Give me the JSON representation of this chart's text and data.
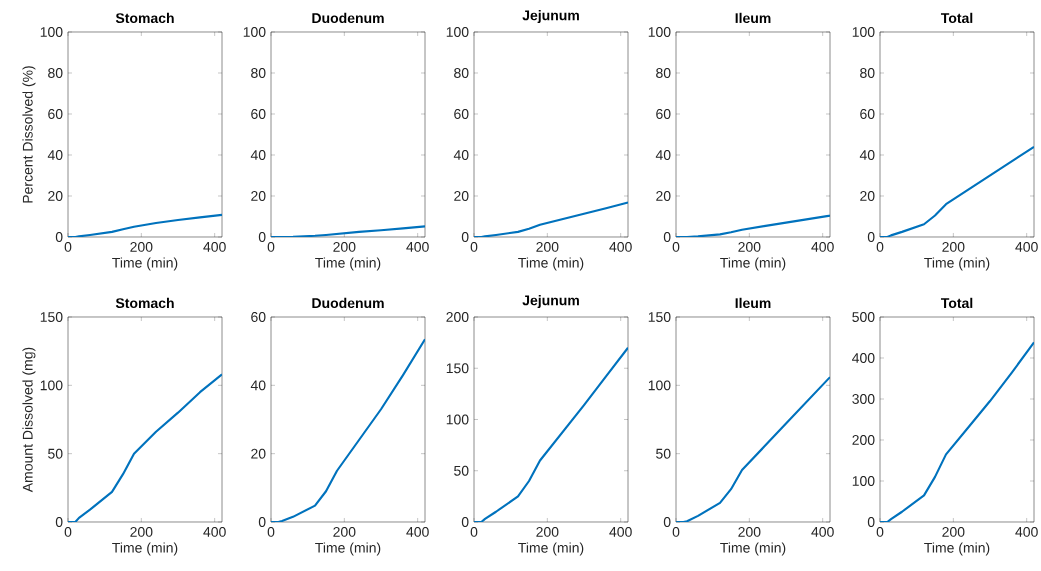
{
  "chart_data": [
    {
      "type": "line",
      "title": "Stomach",
      "xlabel": "Time (min)",
      "ylabel": "Percent Dissolved (%)",
      "x": [
        0,
        20,
        30,
        60,
        120,
        150,
        180,
        240,
        300,
        360,
        420
      ],
      "values": [
        0,
        0,
        0.3,
        1,
        2.5,
        3.8,
        5,
        6.8,
        8.3,
        9.6,
        10.8
      ],
      "color": "#0072bd",
      "xlim": [
        0,
        420
      ],
      "ylim": [
        0,
        100
      ],
      "xticks": [
        0,
        200,
        400
      ],
      "yticks": [
        0,
        20,
        40,
        60,
        80,
        100
      ]
    },
    {
      "type": "line",
      "title": "Duodenum",
      "xlabel": "Time (min)",
      "x": [
        0,
        20,
        30,
        60,
        120,
        150,
        180,
        240,
        300,
        360,
        420
      ],
      "values": [
        0,
        0,
        0,
        0.1,
        0.6,
        1,
        1.5,
        2.5,
        3.3,
        4.2,
        5.2
      ],
      "color": "#0072bd",
      "xlim": [
        0,
        420
      ],
      "ylim": [
        0,
        100
      ],
      "xticks": [
        0,
        200,
        400
      ],
      "yticks": [
        0,
        20,
        40,
        60,
        80,
        100
      ]
    },
    {
      "type": "line",
      "title": "Jejunum",
      "xlabel": "Time (min)",
      "x": [
        0,
        20,
        30,
        60,
        120,
        150,
        180,
        240,
        300,
        360,
        420
      ],
      "values": [
        0,
        0,
        0.3,
        1,
        2.5,
        4,
        6,
        8.7,
        11.3,
        14,
        16.8
      ],
      "color": "#0072bd",
      "xlim": [
        0,
        420
      ],
      "ylim": [
        0,
        100
      ],
      "xticks": [
        0,
        200,
        400
      ],
      "yticks": [
        0,
        20,
        40,
        60,
        80,
        100
      ]
    },
    {
      "type": "line",
      "title": "Ileum",
      "xlabel": "Time (min)",
      "x": [
        0,
        20,
        30,
        60,
        120,
        150,
        180,
        240,
        300,
        360,
        420
      ],
      "values": [
        0,
        0,
        0,
        0.3,
        1.3,
        2.3,
        3.5,
        5.3,
        7,
        8.7,
        10.4
      ],
      "color": "#0072bd",
      "xlim": [
        0,
        420
      ],
      "ylim": [
        0,
        100
      ],
      "xticks": [
        0,
        200,
        400
      ],
      "yticks": [
        0,
        20,
        40,
        60,
        80,
        100
      ]
    },
    {
      "type": "line",
      "title": "Total",
      "xlabel": "Time (min)",
      "x": [
        0,
        20,
        30,
        60,
        120,
        150,
        180,
        240,
        300,
        360,
        420
      ],
      "values": [
        0,
        0,
        0.8,
        2.5,
        6.2,
        10.5,
        16,
        23,
        30,
        37,
        44
      ],
      "color": "#0072bd",
      "xlim": [
        0,
        420
      ],
      "ylim": [
        0,
        100
      ],
      "xticks": [
        0,
        200,
        400
      ],
      "yticks": [
        0,
        20,
        40,
        60,
        80,
        100
      ]
    },
    {
      "type": "line",
      "title": "Stomach",
      "xlabel": "Time (min)",
      "ylabel": "Amount Dissolved (mg)",
      "x": [
        0,
        20,
        30,
        60,
        120,
        150,
        180,
        240,
        300,
        360,
        420
      ],
      "values": [
        0,
        0,
        3,
        9,
        22,
        35,
        50,
        66,
        80,
        95,
        108
      ],
      "color": "#0072bd",
      "xlim": [
        0,
        420
      ],
      "ylim": [
        0,
        150
      ],
      "xticks": [
        0,
        200,
        400
      ],
      "yticks": [
        0,
        50,
        100,
        150
      ]
    },
    {
      "type": "line",
      "title": "Duodenum",
      "xlabel": "Time (min)",
      "x": [
        0,
        20,
        30,
        60,
        120,
        150,
        180,
        240,
        300,
        360,
        420
      ],
      "values": [
        0,
        0,
        0.3,
        1.5,
        4.8,
        9,
        15,
        24,
        33,
        43,
        53.5
      ],
      "color": "#0072bd",
      "xlim": [
        0,
        420
      ],
      "ylim": [
        0,
        60
      ],
      "xticks": [
        0,
        200,
        400
      ],
      "yticks": [
        0,
        20,
        40,
        60
      ]
    },
    {
      "type": "line",
      "title": "Jejunum",
      "xlabel": "Time (min)",
      "x": [
        0,
        20,
        30,
        60,
        120,
        150,
        180,
        240,
        300,
        360,
        420
      ],
      "values": [
        0,
        0,
        3,
        10,
        25,
        40,
        60,
        87,
        114,
        142,
        170
      ],
      "color": "#0072bd",
      "xlim": [
        0,
        420
      ],
      "ylim": [
        0,
        200
      ],
      "xticks": [
        0,
        200,
        400
      ],
      "yticks": [
        0,
        50,
        100,
        150,
        200
      ]
    },
    {
      "type": "line",
      "title": "Ileum",
      "xlabel": "Time (min)",
      "x": [
        0,
        20,
        30,
        60,
        120,
        150,
        180,
        240,
        300,
        360,
        420
      ],
      "values": [
        0,
        0,
        0.5,
        4.5,
        14,
        24,
        38,
        55,
        72,
        89,
        106
      ],
      "color": "#0072bd",
      "xlim": [
        0,
        420
      ],
      "ylim": [
        0,
        150
      ],
      "xticks": [
        0,
        200,
        400
      ],
      "yticks": [
        0,
        50,
        100,
        150
      ]
    },
    {
      "type": "line",
      "title": "Total",
      "xlabel": "Time (min)",
      "x": [
        0,
        20,
        30,
        60,
        120,
        150,
        180,
        240,
        300,
        360,
        420
      ],
      "values": [
        0,
        0,
        7,
        25,
        65,
        110,
        165,
        230,
        295,
        365,
        438
      ],
      "color": "#0072bd",
      "xlim": [
        0,
        420
      ],
      "ylim": [
        0,
        500
      ],
      "xticks": [
        0,
        200,
        400
      ],
      "yticks": [
        0,
        100,
        200,
        300,
        400,
        500
      ]
    }
  ]
}
